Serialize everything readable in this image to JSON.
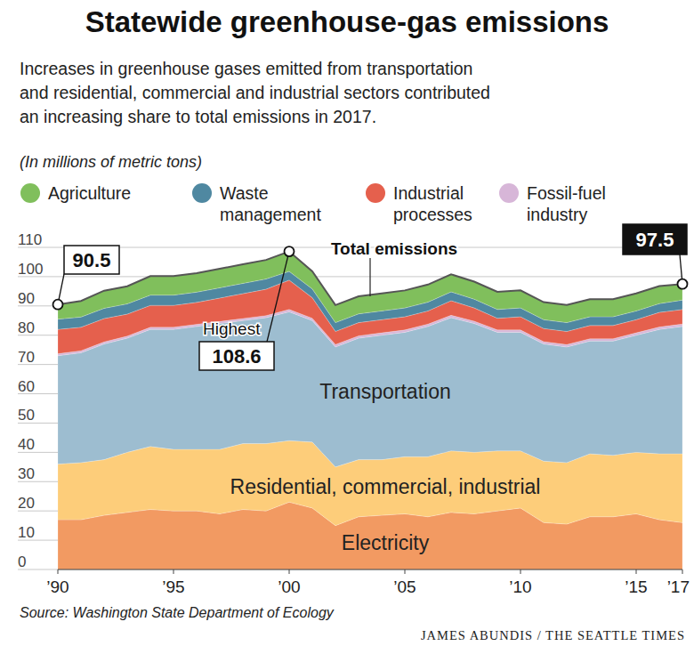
{
  "chart_data": {
    "type": "area",
    "stacked": true,
    "grid": true,
    "legend": "top",
    "title": "Statewide greenhouse-gas emissions",
    "subtitle": [
      "Increases in greenhouse gases emitted from transportation",
      "and residential, commercial and industrial sectors contributed",
      "an increasing share to total emissions in 2017."
    ],
    "y_label": "(In millions of metric tons)",
    "total_label": "Total emissions",
    "source": "Source: Washington State Department of Ecology",
    "credit": "JAMES ABUNDIS / THE SEATTLE TIMES",
    "x": [
      1990,
      1991,
      1992,
      1993,
      1994,
      1995,
      1996,
      1997,
      1998,
      1999,
      2000,
      2001,
      2002,
      2003,
      2004,
      2005,
      2006,
      2007,
      2008,
      2009,
      2010,
      2011,
      2012,
      2013,
      2014,
      2015,
      2016,
      2017
    ],
    "xlim": [
      1990,
      2017
    ],
    "xticks": [
      {
        "value": 1990,
        "label": "’90"
      },
      {
        "value": 1995,
        "label": "’95"
      },
      {
        "value": 2000,
        "label": "’00"
      },
      {
        "value": 2005,
        "label": "’05"
      },
      {
        "value": 2010,
        "label": "’10"
      },
      {
        "value": 2015,
        "label": "’15"
      },
      {
        "value": 2017,
        "label": "’17"
      }
    ],
    "ylim": [
      0,
      110
    ],
    "yticks": [
      0,
      10,
      20,
      30,
      40,
      50,
      60,
      70,
      80,
      90,
      100,
      110
    ],
    "series": [
      {
        "name": "Electricity",
        "color": "#f29a62",
        "values": [
          17,
          17,
          18.5,
          19.5,
          20.5,
          20,
          20,
          19,
          20.5,
          20,
          23,
          21,
          15,
          18,
          18.5,
          19,
          18,
          19.5,
          19,
          20,
          21,
          16,
          15.5,
          18,
          18,
          19,
          17,
          16
        ]
      },
      {
        "name": "Residential, commercial, industrial",
        "color": "#fdcd7a",
        "values": [
          19,
          19.5,
          19,
          20.5,
          21.5,
          21,
          21,
          22,
          22.5,
          23,
          21,
          22.5,
          20,
          19.5,
          19,
          19.5,
          20.5,
          21,
          21,
          20.5,
          19.5,
          21,
          21,
          21.5,
          21,
          21,
          22.5,
          23.5
        ]
      },
      {
        "name": "Transportation",
        "color": "#9dbdd0",
        "values": [
          37,
          37.5,
          39.5,
          39,
          40,
          41,
          42,
          43,
          42,
          43,
          44,
          41.5,
          41,
          41.5,
          42.5,
          42.5,
          44.5,
          45.5,
          44,
          40.5,
          40.5,
          40,
          39.5,
          38.5,
          39,
          40,
          42.5,
          43.5
        ]
      },
      {
        "name": "Fossil-fuel industry",
        "color": "#d7b6d8",
        "values": [
          0.7,
          0.7,
          0.7,
          0.7,
          0.7,
          0.7,
          0.7,
          0.7,
          0.7,
          0.7,
          0.8,
          0.8,
          0.8,
          0.8,
          0.8,
          0.8,
          0.8,
          0.8,
          0.8,
          0.8,
          0.8,
          0.8,
          0.8,
          0.8,
          0.8,
          0.8,
          0.8,
          0.8
        ]
      },
      {
        "name": "Industrial processes",
        "color": "#e5604d",
        "values": [
          8.3,
          8,
          8,
          7.5,
          7.5,
          7.5,
          7.5,
          8,
          8.5,
          9,
          10,
          7,
          4.5,
          4.5,
          4.5,
          4.5,
          4.5,
          5,
          4.5,
          4,
          4.5,
          4.5,
          4.5,
          4.5,
          4.5,
          4.5,
          5,
          5
        ]
      },
      {
        "name": "Waste management",
        "color": "#4f88a1",
        "values": [
          3.5,
          3.5,
          3.5,
          3.5,
          3.5,
          3.5,
          3.5,
          3.5,
          3.5,
          3.5,
          3,
          3,
          3,
          3,
          3,
          3,
          3,
          3,
          3,
          3,
          3,
          3,
          3,
          3,
          3,
          3,
          3,
          3.2
        ]
      },
      {
        "name": "Agriculture",
        "color": "#80bf5c",
        "values": [
          5,
          5.5,
          6,
          6,
          6.5,
          6.5,
          6.5,
          6.5,
          6.5,
          6.5,
          6.8,
          6,
          6,
          6,
          6,
          6,
          6,
          6,
          6,
          6,
          6,
          6,
          6,
          6,
          6,
          6,
          6,
          5.5
        ]
      }
    ],
    "annotations": [
      {
        "x": 1990,
        "y": 90.5,
        "label": "90.5"
      },
      {
        "x": 2000,
        "y": 108.6,
        "note": "Highest",
        "label": "108.6"
      },
      {
        "x": 2017,
        "y": 97.5,
        "label": "97.5"
      }
    ]
  }
}
